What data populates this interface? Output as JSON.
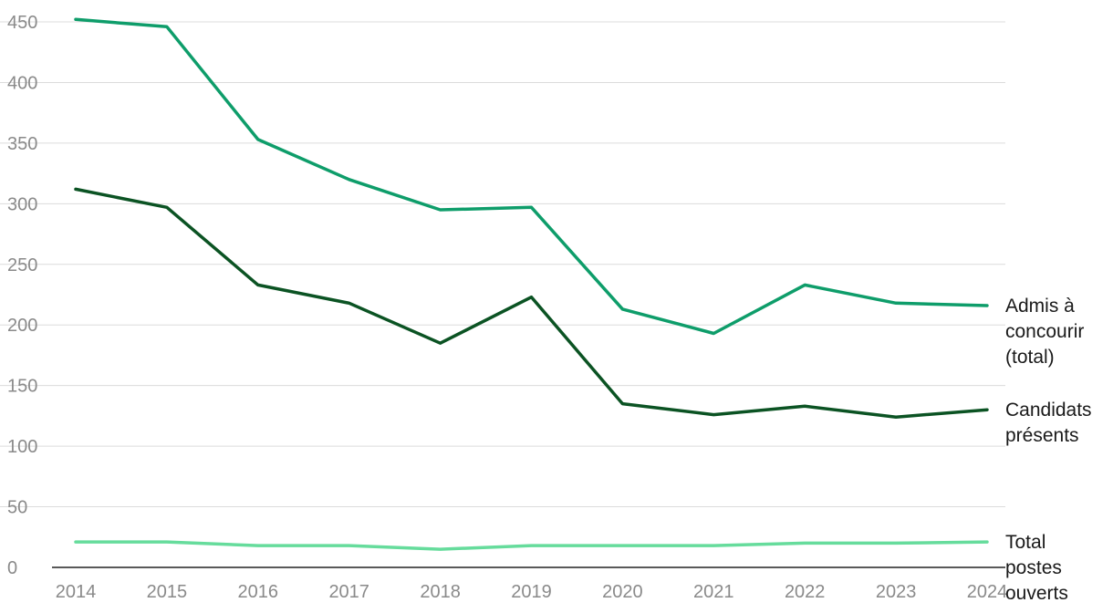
{
  "chart_data": {
    "type": "line",
    "title": "",
    "xlabel": "",
    "ylabel": "",
    "x": [
      2014,
      2015,
      2016,
      2017,
      2018,
      2019,
      2020,
      2021,
      2022,
      2023,
      2024
    ],
    "ylim": [
      0,
      450
    ],
    "yticks": [
      0,
      50,
      100,
      150,
      200,
      250,
      300,
      350,
      400,
      450
    ],
    "grid": true,
    "legend": "direct-labels-right",
    "series": [
      {
        "name": "Admis à concourir (total)",
        "label_lines": [
          "Admis à",
          "concourir",
          "(total)"
        ],
        "color": "#0e9d6a",
        "values": [
          452,
          446,
          353,
          320,
          295,
          297,
          213,
          193,
          233,
          218,
          216
        ]
      },
      {
        "name": "Candidats présents",
        "label_lines": [
          "Candidats",
          "présents"
        ],
        "color": "#0b5323",
        "values": [
          312,
          297,
          233,
          218,
          185,
          223,
          135,
          126,
          133,
          124,
          130
        ]
      },
      {
        "name": "Total postes ouverts",
        "label_lines": [
          "Total",
          "postes",
          "ouverts"
        ],
        "color": "#66dc9c",
        "values": [
          21,
          21,
          18,
          18,
          15,
          18,
          18,
          18,
          20,
          20,
          21
        ]
      }
    ]
  }
}
